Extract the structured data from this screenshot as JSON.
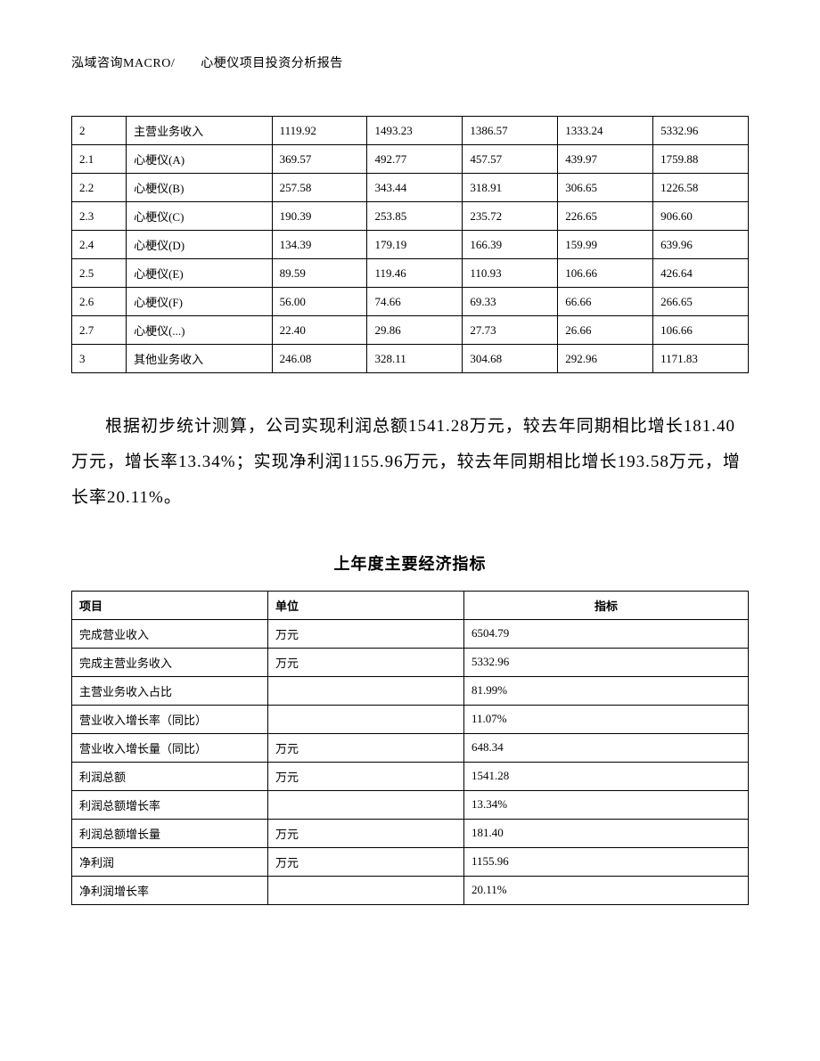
{
  "header": {
    "text": "泓域咨询MACRO/　　心梗仪项目投资分析报告"
  },
  "table1": {
    "type": "table",
    "border_color": "#000000",
    "background_color": "#ffffff",
    "text_color": "#000000",
    "font_size_pt": 10,
    "col_widths_pct": [
      8,
      20,
      14,
      14,
      14,
      14,
      14
    ],
    "alignment": "left",
    "rows": [
      {
        "idx": "2",
        "name": "主营业务收入",
        "v1": "1119.92",
        "v2": "1493.23",
        "v3": "1386.57",
        "v4": "1333.24",
        "v5": "5332.96"
      },
      {
        "idx": "2.1",
        "name": "心梗仪(A)",
        "v1": "369.57",
        "v2": "492.77",
        "v3": "457.57",
        "v4": "439.97",
        "v5": "1759.88"
      },
      {
        "idx": "2.2",
        "name": "心梗仪(B)",
        "v1": "257.58",
        "v2": "343.44",
        "v3": "318.91",
        "v4": "306.65",
        "v5": "1226.58"
      },
      {
        "idx": "2.3",
        "name": "心梗仪(C)",
        "v1": "190.39",
        "v2": "253.85",
        "v3": "235.72",
        "v4": "226.65",
        "v5": "906.60"
      },
      {
        "idx": "2.4",
        "name": "心梗仪(D)",
        "v1": "134.39",
        "v2": "179.19",
        "v3": "166.39",
        "v4": "159.99",
        "v5": "639.96"
      },
      {
        "idx": "2.5",
        "name": "心梗仪(E)",
        "v1": "89.59",
        "v2": "119.46",
        "v3": "110.93",
        "v4": "106.66",
        "v5": "426.64"
      },
      {
        "idx": "2.6",
        "name": "心梗仪(F)",
        "v1": "56.00",
        "v2": "74.66",
        "v3": "69.33",
        "v4": "66.66",
        "v5": "266.65"
      },
      {
        "idx": "2.7",
        "name": "心梗仪(...)",
        "v1": "22.40",
        "v2": "29.86",
        "v3": "27.73",
        "v4": "26.66",
        "v5": "106.66"
      },
      {
        "idx": "3",
        "name": "其他业务收入",
        "v1": "246.08",
        "v2": "328.11",
        "v3": "304.68",
        "v4": "292.96",
        "v5": "1171.83"
      }
    ]
  },
  "paragraph": {
    "text": "根据初步统计测算，公司实现利润总额1541.28万元，较去年同期相比增长181.40万元，增长率13.34%；实现净利润1155.96万元，较去年同期相比增长193.58万元，增长率20.11%。",
    "font_size_pt": 14,
    "line_height": 2.1,
    "text_indent_em": 2,
    "text_color": "#000000"
  },
  "table2": {
    "type": "table",
    "title": "上年度主要经济指标",
    "title_font_size_pt": 14,
    "title_font_weight": "bold",
    "border_color": "#000000",
    "background_color": "#ffffff",
    "text_color": "#000000",
    "font_size_pt": 10,
    "columns": [
      {
        "key": "item",
        "label": "项目",
        "align": "left"
      },
      {
        "key": "unit",
        "label": "单位",
        "align": "left"
      },
      {
        "key": "value",
        "label": "指标",
        "align": "center"
      }
    ],
    "rows": [
      {
        "item": "完成营业收入",
        "unit": "万元",
        "value": "6504.79"
      },
      {
        "item": "完成主营业务收入",
        "unit": "万元",
        "value": "5332.96"
      },
      {
        "item": "主营业务收入占比",
        "unit": "",
        "value": "81.99%"
      },
      {
        "item": "营业收入增长率（同比）",
        "unit": "",
        "value": "11.07%"
      },
      {
        "item": "营业收入增长量（同比）",
        "unit": "万元",
        "value": "648.34"
      },
      {
        "item": "利润总额",
        "unit": "万元",
        "value": "1541.28"
      },
      {
        "item": "利润总额增长率",
        "unit": "",
        "value": "13.34%"
      },
      {
        "item": "利润总额增长量",
        "unit": "万元",
        "value": "181.40"
      },
      {
        "item": "净利润",
        "unit": "万元",
        "value": "1155.96"
      },
      {
        "item": "净利润增长率",
        "unit": "",
        "value": "20.11%"
      }
    ]
  }
}
